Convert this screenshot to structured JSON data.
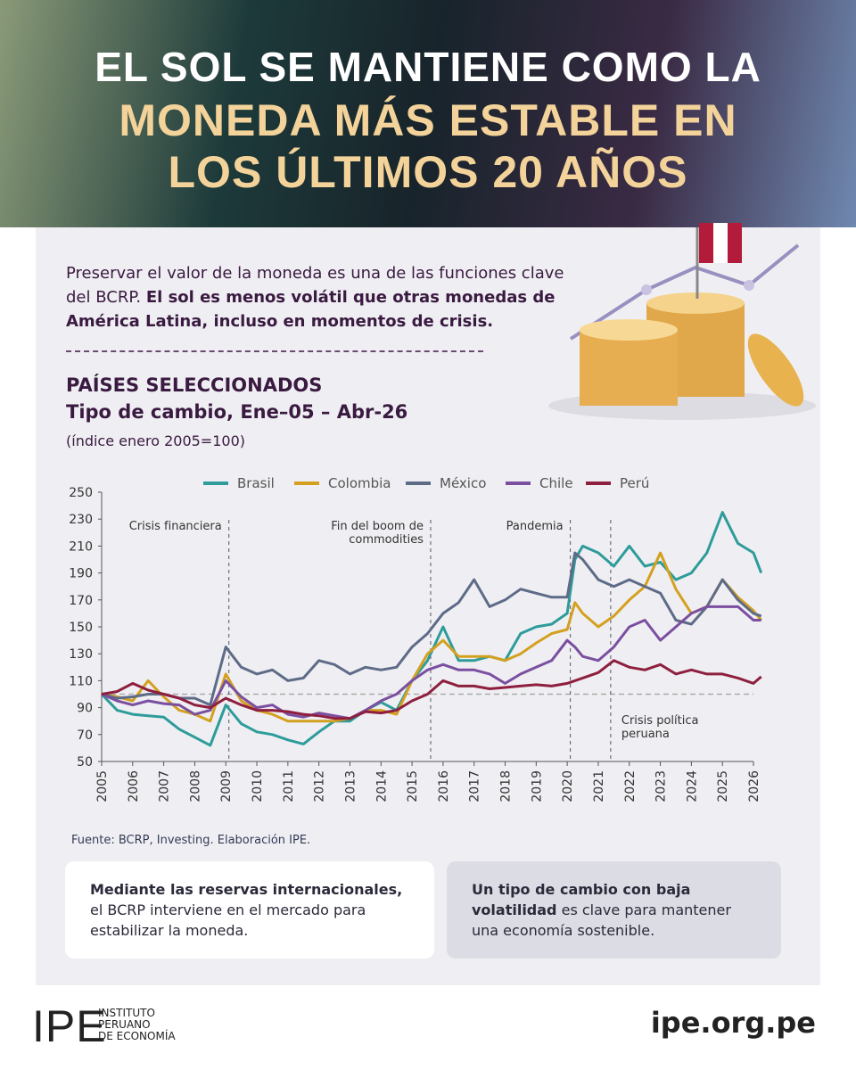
{
  "header": {
    "title_lines": [
      "EL SOL SE MANTIENE COMO LA",
      "MONEDA MÁS ESTABLE EN",
      "LOS ÚLTIMOS 20 AÑOS"
    ]
  },
  "intro": {
    "parts": [
      {
        "text": "Preservar el valor de la moneda es una de las funciones clave del BCRP."
      },
      {
        "text": "El sol es menos volátil que otras monedas de América Latina, incluso en momentos de crisis.",
        "bold": true
      }
    ]
  },
  "chart_data": {
    "type": "line",
    "title": "PAÍSES SELECCIONADOS",
    "subtitle": "Tipo de cambio, Ene–05 – Abr-26",
    "note": "(índice enero 2005=100)",
    "source": "Fuente: BCRP, Investing. Elaboración IPE.",
    "x": [
      2005,
      2005.5,
      2006,
      2006.5,
      2007,
      2007.5,
      2008,
      2008.5,
      2009,
      2009.5,
      2010,
      2010.5,
      2011,
      2011.5,
      2012,
      2012.5,
      2013,
      2013.5,
      2014,
      2014.5,
      2015,
      2015.5,
      2016,
      2016.5,
      2017,
      2017.5,
      2018,
      2018.5,
      2019,
      2019.5,
      2020,
      2020.25,
      2020.5,
      2021,
      2021.5,
      2022,
      2022.5,
      2023,
      2023.5,
      2024,
      2024.5,
      2025,
      2025.5,
      2026,
      2026.25
    ],
    "series": [
      {
        "name": "Brasil",
        "color": "#2e9c9a",
        "values": [
          100,
          88,
          85,
          84,
          83,
          74,
          68,
          62,
          92,
          78,
          72,
          70,
          66,
          63,
          72,
          80,
          80,
          88,
          94,
          88,
          110,
          125,
          150,
          125,
          125,
          128,
          125,
          145,
          150,
          152,
          160,
          200,
          210,
          205,
          195,
          210,
          195,
          198,
          185,
          190,
          205,
          235,
          212,
          205,
          190
        ]
      },
      {
        "name": "Colombia",
        "color": "#d4a020",
        "values": [
          100,
          98,
          95,
          110,
          98,
          88,
          85,
          80,
          115,
          95,
          88,
          85,
          80,
          80,
          80,
          80,
          82,
          88,
          88,
          85,
          110,
          130,
          140,
          128,
          128,
          128,
          125,
          130,
          138,
          145,
          148,
          168,
          160,
          150,
          158,
          170,
          180,
          205,
          178,
          160,
          165,
          185,
          172,
          162,
          155
        ]
      },
      {
        "name": "México",
        "color": "#5e6b87",
        "values": [
          100,
          97,
          98,
          100,
          100,
          97,
          97,
          92,
          135,
          120,
          115,
          118,
          110,
          112,
          125,
          122,
          115,
          120,
          118,
          120,
          135,
          145,
          160,
          168,
          185,
          165,
          170,
          178,
          175,
          172,
          172,
          205,
          200,
          185,
          180,
          185,
          180,
          175,
          155,
          152,
          165,
          185,
          170,
          160,
          158
        ]
      },
      {
        "name": "Chile",
        "color": "#7b4fa0",
        "values": [
          100,
          95,
          92,
          95,
          93,
          92,
          85,
          88,
          110,
          98,
          90,
          92,
          85,
          83,
          86,
          84,
          82,
          88,
          95,
          100,
          110,
          118,
          122,
          118,
          118,
          115,
          108,
          115,
          120,
          125,
          140,
          135,
          128,
          125,
          135,
          150,
          155,
          140,
          150,
          160,
          165,
          165,
          165,
          155,
          155
        ]
      },
      {
        "name": "Perú",
        "color": "#8e1f3f",
        "values": [
          100,
          102,
          108,
          103,
          100,
          97,
          92,
          90,
          97,
          92,
          88,
          88,
          87,
          85,
          84,
          82,
          82,
          87,
          86,
          88,
          95,
          100,
          110,
          106,
          106,
          104,
          105,
          106,
          107,
          106,
          108,
          110,
          112,
          116,
          125,
          120,
          118,
          122,
          115,
          118,
          115,
          115,
          112,
          108,
          113
        ]
      }
    ],
    "ylim": [
      50,
      250
    ],
    "yticks": [
      50,
      70,
      90,
      110,
      130,
      150,
      170,
      190,
      210,
      230,
      250
    ],
    "xlim": [
      2005,
      2026
    ],
    "xticks": [
      2005,
      2006,
      2007,
      2008,
      2009,
      2010,
      2011,
      2012,
      2013,
      2014,
      2015,
      2016,
      2017,
      2018,
      2019,
      2020,
      2021,
      2022,
      2023,
      2024,
      2025,
      2026
    ],
    "baseline": 100,
    "legend": "top",
    "annotations": [
      {
        "x": 2009.1,
        "lines": [
          "Crisis financiera"
        ]
      },
      {
        "x": 2015.6,
        "lines": [
          "Fin del boom de",
          "commodities"
        ]
      },
      {
        "x": 2020.1,
        "lines": [
          "Pandemia"
        ]
      },
      {
        "x": 2021.4,
        "lines": [
          "Crisis política",
          "peruana"
        ]
      }
    ]
  },
  "boxes": [
    {
      "parts": [
        {
          "text": "Mediante las reservas internacionales,",
          "bold": true
        },
        {
          "text": "el BCRP interviene en el mercado para estabilizar la moneda."
        }
      ]
    },
    {
      "parts": [
        {
          "text": "Un tipo de cambio con baja volatilidad",
          "bold": true
        },
        {
          "text": "es clave para mantener una economía sostenible."
        }
      ]
    }
  ],
  "footer": {
    "logo": "IPE",
    "org_lines": [
      "INSTITUTO",
      "PERUANO",
      "DE ECONOMÍA"
    ],
    "url": "ipe.org.pe"
  }
}
